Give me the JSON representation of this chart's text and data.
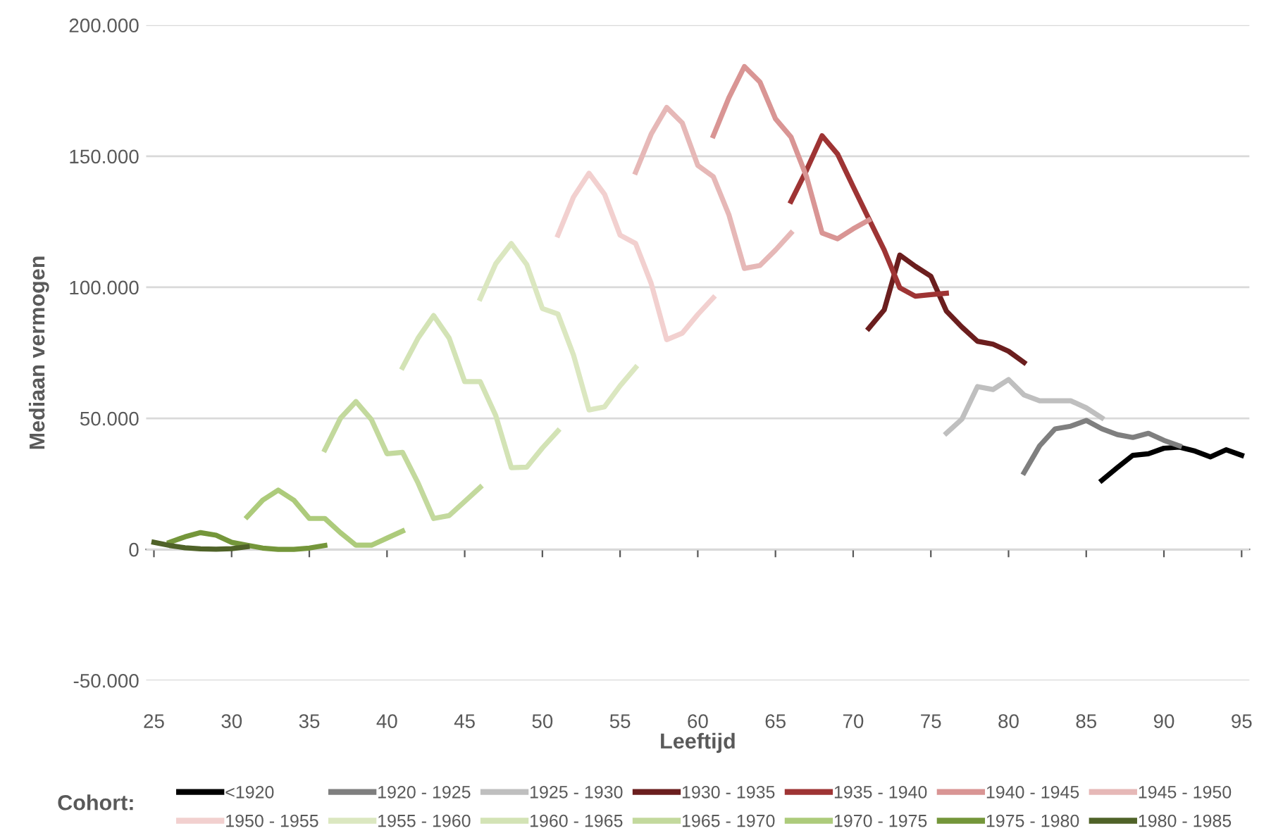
{
  "chart_data": {
    "type": "line",
    "xlabel": "Leeftijd",
    "ylabel": "Mediaan vermogen",
    "legend_title": "Cohort:",
    "xlim": [
      24.5,
      95.5
    ],
    "xticks": [
      25,
      30,
      35,
      40,
      45,
      50,
      55,
      60,
      65,
      70,
      75,
      80,
      85,
      90,
      95
    ],
    "ylim": [
      -50000,
      200000
    ],
    "yticks": [
      {
        "value": -50000,
        "label": "-50.000"
      },
      {
        "value": 0,
        "label": "0"
      },
      {
        "value": 50000,
        "label": "50.000"
      },
      {
        "value": 100000,
        "label": "100.000"
      },
      {
        "value": 150000,
        "label": "150.000"
      },
      {
        "value": 200000,
        "label": "200.000"
      }
    ],
    "grid": "y",
    "legend": "bottom",
    "marker": "none",
    "line_style": "solid",
    "series": [
      {
        "name": "<1920",
        "color": "#000000",
        "x": [
          86,
          87,
          88,
          89,
          90,
          91,
          92,
          93,
          94,
          95
        ],
        "values": [
          26300,
          31200,
          35900,
          36500,
          38600,
          39000,
          37500,
          35300,
          38000,
          35900
        ]
      },
      {
        "name": "1920 - 1925",
        "color": "#7f7f7f",
        "x": [
          81,
          82,
          83,
          84,
          85,
          86,
          87,
          88,
          89,
          90,
          91
        ],
        "values": [
          29300,
          39500,
          46000,
          47000,
          49200,
          46000,
          43800,
          42700,
          44300,
          41600,
          39500
        ]
      },
      {
        "name": "1925 - 1930",
        "color": "#bfbfbf",
        "x": [
          76,
          77,
          78,
          79,
          80,
          81,
          82,
          83,
          84,
          85,
          86
        ],
        "values": [
          44300,
          49700,
          62100,
          61000,
          64800,
          58900,
          56700,
          56700,
          56700,
          54000,
          50200
        ]
      },
      {
        "name": "1930 - 1935",
        "color": "#6b1e1e",
        "x": [
          71,
          72,
          73,
          74,
          75,
          76,
          77,
          78,
          79,
          80,
          81
        ],
        "values": [
          84300,
          91400,
          112300,
          108000,
          104200,
          90900,
          84800,
          79400,
          78300,
          75600,
          71300
        ]
      },
      {
        "name": "1935 - 1940",
        "color": "#9e3434",
        "x": [
          66,
          67,
          68,
          69,
          70,
          71,
          72,
          73,
          74,
          75,
          76
        ],
        "values": [
          132800,
          144700,
          157800,
          150800,
          138400,
          126200,
          114200,
          99800,
          96600,
          97200,
          97700
        ]
      },
      {
        "name": "1940 - 1945",
        "color": "#d99594",
        "x": [
          61,
          62,
          63,
          64,
          65,
          66,
          67,
          68,
          69,
          70,
          71
        ],
        "values": [
          157800,
          172300,
          184200,
          178300,
          164300,
          157300,
          142200,
          120700,
          118500,
          122300,
          125600
        ]
      },
      {
        "name": "1945 - 1950",
        "color": "#e6b8b7",
        "x": [
          56,
          57,
          58,
          59,
          60,
          61,
          62,
          63,
          64,
          65,
          66
        ],
        "values": [
          143900,
          158400,
          168600,
          162700,
          146500,
          142200,
          127700,
          107200,
          108300,
          114200,
          120700
        ]
      },
      {
        "name": "1950 - 1955",
        "color": "#f2d0cf",
        "x": [
          51,
          52,
          53,
          54,
          55,
          56,
          57,
          58,
          59,
          60,
          61
        ],
        "values": [
          119900,
          134400,
          143500,
          135500,
          119900,
          116700,
          101500,
          80000,
          82500,
          89600,
          96000
        ]
      },
      {
        "name": "1955 - 1960",
        "color": "#dbe7c0",
        "x": [
          46,
          47,
          48,
          49,
          50,
          51,
          52,
          53,
          54,
          55,
          56
        ],
        "values": [
          95700,
          109000,
          116700,
          108600,
          91900,
          89800,
          74200,
          53200,
          54400,
          62400,
          69400
        ]
      },
      {
        "name": "1960 - 1965",
        "color": "#d3e3b5",
        "x": [
          41,
          42,
          43,
          44,
          45,
          46,
          47,
          48,
          49,
          50,
          51
        ],
        "values": [
          69400,
          80600,
          89200,
          80600,
          64000,
          64000,
          51000,
          31200,
          31400,
          38700,
          45200
        ]
      },
      {
        "name": "1965 - 1970",
        "color": "#c3d99d",
        "x": [
          36,
          37,
          38,
          39,
          40,
          41,
          42,
          43,
          44,
          45,
          46
        ],
        "values": [
          38000,
          50000,
          56400,
          49500,
          36500,
          37000,
          25300,
          11800,
          12900,
          18300,
          23700
        ]
      },
      {
        "name": "1970 - 1975",
        "color": "#adcb7b",
        "x": [
          31,
          32,
          33,
          34,
          35,
          36,
          37,
          38,
          39,
          40,
          41
        ],
        "values": [
          12400,
          18800,
          22600,
          18800,
          11800,
          11800,
          6400,
          1600,
          1600,
          4300,
          7000
        ]
      },
      {
        "name": "1975 - 1980",
        "color": "#74963a",
        "x": [
          26,
          27,
          28,
          29,
          30,
          31,
          32,
          33,
          34,
          35,
          36
        ],
        "values": [
          2700,
          4800,
          6400,
          5400,
          2700,
          1600,
          500,
          0,
          0,
          500,
          1500
        ]
      },
      {
        "name": "1980 - 1985",
        "color": "#4f6228",
        "x": [
          25,
          26,
          27,
          28,
          29,
          30,
          31
        ],
        "values": [
          2700,
          1500,
          600,
          200,
          100,
          300,
          1000
        ]
      }
    ]
  }
}
